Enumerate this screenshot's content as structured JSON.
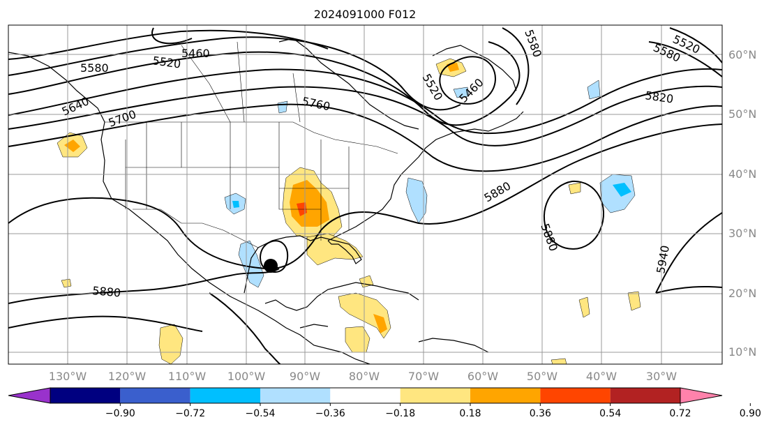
{
  "title": "2024091000 F012",
  "lat_labels": [
    "60°N",
    "50°N",
    "40°N",
    "30°N",
    "20°N",
    "10°N"
  ],
  "lon_labels": [
    "130°W",
    "120°W",
    "110°W",
    "100°W",
    "90°W",
    "80°W",
    "70°W",
    "60°W",
    "50°W",
    "40°W",
    "30°W"
  ],
  "contour_labels": [
    "5460",
    "5520",
    "5580",
    "5640",
    "5700",
    "5760",
    "5880",
    "5520",
    "5460",
    "5580",
    "5520",
    "5580",
    "5820",
    "5880",
    "5880",
    "5940"
  ],
  "colorbar": {
    "ticks": [
      "−0.90",
      "−0.72",
      "−0.54",
      "−0.36",
      "−0.18",
      "0.18",
      "0.36",
      "0.54",
      "0.72",
      "0.90"
    ],
    "colors": [
      "#9932cc",
      "#000080",
      "#3a5fcd",
      "#00bfff",
      "#b0e0ff",
      "#ffffff",
      "#ffe680",
      "#ffa500",
      "#ff4500",
      "#b22222",
      "#ff82ab"
    ]
  },
  "colors": {
    "shade_light_yellow": "#ffe680",
    "shade_orange": "#ffa500",
    "shade_red": "#ff4500",
    "shade_light_blue": "#b0e0ff",
    "shade_blue": "#00bfff"
  }
}
